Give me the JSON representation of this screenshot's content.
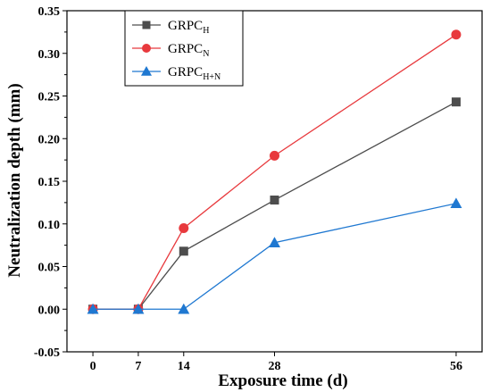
{
  "chart_data": {
    "type": "line",
    "xlabel": "Exposure time (d)",
    "ylabel": "Neutralization depth (mm)",
    "x": [
      0,
      7,
      14,
      28,
      56
    ],
    "x_ticks": [
      "0",
      "7",
      "14",
      "28",
      "56"
    ],
    "xlim": [
      -4,
      60
    ],
    "ylim": [
      -0.05,
      0.35
    ],
    "y_ticks": [
      "-0.05",
      "0.00",
      "0.05",
      "0.10",
      "0.15",
      "0.20",
      "0.25",
      "0.30",
      "0.35"
    ],
    "grid": false,
    "legend_position": "top-left",
    "series": [
      {
        "name": "GRPC",
        "name_sub": "H",
        "marker": "square",
        "color": "#4d4d4d",
        "values": [
          0,
          0,
          0.068,
          0.128,
          0.243
        ]
      },
      {
        "name": "GRPC",
        "name_sub": "N",
        "marker": "circle",
        "color": "#e8393d",
        "values": [
          0,
          0,
          0.095,
          0.18,
          0.322
        ]
      },
      {
        "name": "GRPC",
        "name_sub": "H+N",
        "marker": "triangle",
        "color": "#1f78d1",
        "values": [
          0,
          0,
          0,
          0.078,
          0.124
        ]
      }
    ]
  }
}
